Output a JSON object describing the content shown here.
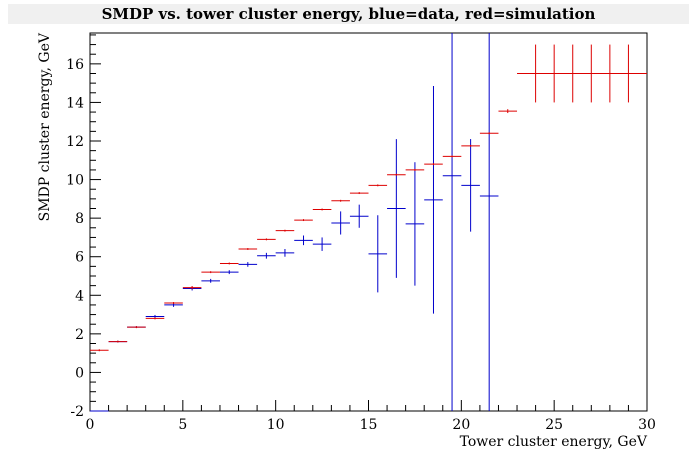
{
  "title": "SMDP vs. tower cluster energy, blue=data, red=simulation",
  "chart_data": {
    "type": "scatter",
    "title": "SMDP vs. tower cluster energy, blue=data, red=simulation",
    "xlabel": "Tower cluster energy, GeV",
    "ylabel": "SMDP cluster energy, GeV",
    "xlim": [
      0,
      30
    ],
    "ylim": [
      -2,
      17.6
    ],
    "x_ticks": [
      0,
      5,
      10,
      15,
      20,
      25,
      30
    ],
    "y_ticks": [
      -2,
      0,
      2,
      4,
      6,
      8,
      10,
      12,
      14,
      16
    ],
    "x_tick_labels": [
      "0",
      "5",
      "10",
      "15",
      "20",
      "25",
      "30"
    ],
    "y_tick_labels": [
      "-2",
      "0",
      "2",
      "4",
      "6",
      "8",
      "10",
      "12",
      "14",
      "16"
    ],
    "grid": false,
    "series": [
      {
        "color": "#0000cc",
        "points": [
          {
            "x": 0.5,
            "xerr": 0.5,
            "y": -2.0,
            "yerr": 0.02
          },
          {
            "x": 1.5,
            "xerr": 0.5,
            "y": 1.6,
            "yerr": 0.05
          },
          {
            "x": 2.5,
            "xerr": 0.5,
            "y": 2.35,
            "yerr": 0.05
          },
          {
            "x": 3.5,
            "xerr": 0.5,
            "y": 2.9,
            "yerr": 0.08
          },
          {
            "x": 4.5,
            "xerr": 0.5,
            "y": 3.5,
            "yerr": 0.1
          },
          {
            "x": 5.5,
            "xerr": 0.5,
            "y": 4.35,
            "yerr": 0.1
          },
          {
            "x": 6.5,
            "xerr": 0.5,
            "y": 4.75,
            "yerr": 0.1
          },
          {
            "x": 7.5,
            "xerr": 0.5,
            "y": 5.2,
            "yerr": 0.1
          },
          {
            "x": 8.5,
            "xerr": 0.5,
            "y": 5.6,
            "yerr": 0.12
          },
          {
            "x": 9.5,
            "xerr": 0.5,
            "y": 6.05,
            "yerr": 0.15
          },
          {
            "x": 10.5,
            "xerr": 0.5,
            "y": 6.2,
            "yerr": 0.2
          },
          {
            "x": 11.5,
            "xerr": 0.5,
            "y": 6.85,
            "yerr": 0.25
          },
          {
            "x": 12.5,
            "xerr": 0.5,
            "y": 6.65,
            "yerr": 0.35
          },
          {
            "x": 13.5,
            "xerr": 0.5,
            "y": 7.75,
            "yerr": 0.6
          },
          {
            "x": 14.5,
            "xerr": 0.5,
            "y": 8.1,
            "yerr": 0.6
          },
          {
            "x": 15.5,
            "xerr": 0.5,
            "y": 6.15,
            "yerr": 2.0
          },
          {
            "x": 16.5,
            "xerr": 0.5,
            "y": 8.5,
            "yerr": 3.6
          },
          {
            "x": 17.5,
            "xerr": 0.5,
            "y": 7.7,
            "yerr": 3.2
          },
          {
            "x": 18.5,
            "xerr": 0.5,
            "y": 8.95,
            "yerr": 5.9
          },
          {
            "x": 19.5,
            "xerr": 0.5,
            "y": 10.2,
            "yerr": 15.0
          },
          {
            "x": 20.5,
            "xerr": 0.5,
            "y": 9.7,
            "yerr": 2.4
          },
          {
            "x": 21.5,
            "xerr": 0.5,
            "y": 9.15,
            "yerr": 15.0
          }
        ]
      },
      {
        "color": "#dd0000",
        "points": [
          {
            "x": 0.5,
            "xerr": 0.5,
            "y": 1.15,
            "yerr": 0.05
          },
          {
            "x": 1.5,
            "xerr": 0.5,
            "y": 1.6,
            "yerr": 0.05
          },
          {
            "x": 2.5,
            "xerr": 0.5,
            "y": 2.35,
            "yerr": 0.05
          },
          {
            "x": 3.5,
            "xerr": 0.5,
            "y": 2.8,
            "yerr": 0.05
          },
          {
            "x": 4.5,
            "xerr": 0.5,
            "y": 3.6,
            "yerr": 0.05
          },
          {
            "x": 5.5,
            "xerr": 0.5,
            "y": 4.4,
            "yerr": 0.08
          },
          {
            "x": 6.5,
            "xerr": 0.5,
            "y": 5.2,
            "yerr": 0.05
          },
          {
            "x": 7.5,
            "xerr": 0.5,
            "y": 5.65,
            "yerr": 0.05
          },
          {
            "x": 8.5,
            "xerr": 0.5,
            "y": 6.4,
            "yerr": 0.05
          },
          {
            "x": 9.5,
            "xerr": 0.5,
            "y": 6.9,
            "yerr": 0.05
          },
          {
            "x": 10.5,
            "xerr": 0.5,
            "y": 7.35,
            "yerr": 0.05
          },
          {
            "x": 11.5,
            "xerr": 0.5,
            "y": 7.9,
            "yerr": 0.05
          },
          {
            "x": 12.5,
            "xerr": 0.5,
            "y": 8.45,
            "yerr": 0.05
          },
          {
            "x": 13.5,
            "xerr": 0.5,
            "y": 8.9,
            "yerr": 0.05
          },
          {
            "x": 14.5,
            "xerr": 0.5,
            "y": 9.3,
            "yerr": 0.05
          },
          {
            "x": 15.5,
            "xerr": 0.5,
            "y": 9.7,
            "yerr": 0.05
          },
          {
            "x": 16.5,
            "xerr": 0.5,
            "y": 10.25,
            "yerr": 0.05
          },
          {
            "x": 17.5,
            "xerr": 0.5,
            "y": 10.5,
            "yerr": 0.05
          },
          {
            "x": 18.5,
            "xerr": 0.5,
            "y": 10.8,
            "yerr": 0.05
          },
          {
            "x": 19.5,
            "xerr": 0.5,
            "y": 11.2,
            "yerr": 0.05
          },
          {
            "x": 20.5,
            "xerr": 0.5,
            "y": 11.75,
            "yerr": 0.05
          },
          {
            "x": 21.5,
            "xerr": 0.5,
            "y": 12.4,
            "yerr": 0.05
          },
          {
            "x": 22.5,
            "xerr": 0.5,
            "y": 13.55,
            "yerr": 0.1
          },
          {
            "x": 24.0,
            "xerr": 1.0,
            "y": 15.5,
            "yerr": 1.5
          },
          {
            "x": 25.0,
            "xerr": 1.0,
            "y": 15.5,
            "yerr": 1.5
          },
          {
            "x": 26.0,
            "xerr": 1.0,
            "y": 15.5,
            "yerr": 1.5
          },
          {
            "x": 27.0,
            "xerr": 1.0,
            "y": 15.5,
            "yerr": 1.5
          },
          {
            "x": 28.0,
            "xerr": 1.0,
            "y": 15.5,
            "yerr": 1.5
          },
          {
            "x": 29.0,
            "xerr": 1.0,
            "y": 15.5,
            "yerr": 1.5
          }
        ]
      }
    ]
  }
}
